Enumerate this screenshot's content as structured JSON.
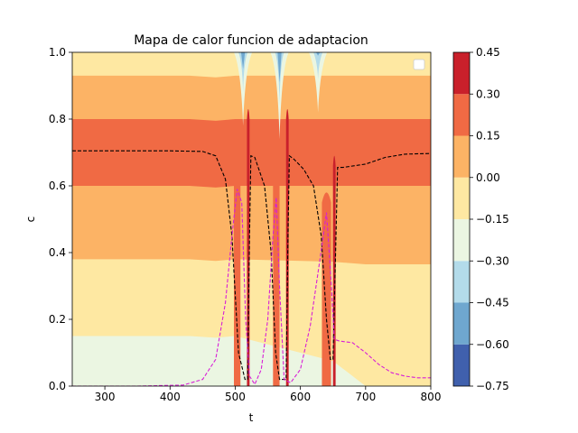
{
  "chart_data": {
    "type": "heatmap",
    "title": "Mapa de calor funcion de adaptacion",
    "xlabel": "t",
    "ylabel": "c",
    "xlim": [
      250,
      800
    ],
    "ylim": [
      0.0,
      1.0
    ],
    "x_ticks": [
      "300",
      "400",
      "500",
      "600",
      "700",
      "800"
    ],
    "x_tick_values": [
      300,
      400,
      500,
      600,
      700,
      800
    ],
    "y_ticks": [
      "0.0",
      "0.2",
      "0.4",
      "0.6",
      "0.8",
      "1.0"
    ],
    "y_tick_values": [
      0.0,
      0.2,
      0.4,
      0.6,
      0.8,
      1.0
    ],
    "colorbar": {
      "levels": [
        -0.75,
        -0.6,
        -0.45,
        -0.3,
        -0.15,
        0.0,
        0.15,
        0.3,
        0.45
      ],
      "tick_labels": [
        "−0.75",
        "−0.60",
        "−0.45",
        "−0.30",
        "−0.15",
        "0.00",
        "0.15",
        "0.30",
        "0.45"
      ],
      "colors": [
        "#4060ad",
        "#6fa7cf",
        "#b3dbea",
        "#ebf6e2",
        "#fee8a2",
        "#fcb365",
        "#f06a44",
        "#c9202b"
      ]
    },
    "band_boundaries_at_t300": [
      0.15,
      0.38,
      0.6,
      0.8,
      0.93
    ],
    "black_dashed_series": {
      "style": "dashed",
      "color": "#000000",
      "points": [
        [
          250,
          0.705
        ],
        [
          300,
          0.705
        ],
        [
          350,
          0.705
        ],
        [
          400,
          0.705
        ],
        [
          450,
          0.703
        ],
        [
          470,
          0.69
        ],
        [
          485,
          0.62
        ],
        [
          495,
          0.45
        ],
        [
          505,
          0.1
        ],
        [
          515,
          0.02
        ],
        [
          519,
          0.02
        ],
        [
          522,
          0.45
        ],
        [
          524,
          0.69
        ],
        [
          530,
          0.685
        ],
        [
          545,
          0.6
        ],
        [
          555,
          0.4
        ],
        [
          562,
          0.1
        ],
        [
          568,
          0.02
        ],
        [
          578,
          0.02
        ],
        [
          581,
          0.45
        ],
        [
          583,
          0.69
        ],
        [
          590,
          0.68
        ],
        [
          605,
          0.65
        ],
        [
          620,
          0.6
        ],
        [
          632,
          0.45
        ],
        [
          640,
          0.2
        ],
        [
          646,
          0.08
        ],
        [
          650,
          0.08
        ],
        [
          654,
          0.4
        ],
        [
          657,
          0.655
        ],
        [
          665,
          0.655
        ],
        [
          700,
          0.665
        ],
        [
          730,
          0.685
        ],
        [
          760,
          0.695
        ],
        [
          800,
          0.697
        ]
      ]
    },
    "magenta_dashed_series": {
      "style": "dashed",
      "color": "#d71fd7",
      "points": [
        [
          250,
          0.0
        ],
        [
          350,
          0.0
        ],
        [
          420,
          0.003
        ],
        [
          450,
          0.02
        ],
        [
          470,
          0.08
        ],
        [
          485,
          0.25
        ],
        [
          495,
          0.45
        ],
        [
          503,
          0.59
        ],
        [
          510,
          0.55
        ],
        [
          516,
          0.2
        ],
        [
          522,
          0.03
        ],
        [
          530,
          0.005
        ],
        [
          540,
          0.05
        ],
        [
          550,
          0.2
        ],
        [
          558,
          0.45
        ],
        [
          563,
          0.565
        ],
        [
          568,
          0.3
        ],
        [
          575,
          0.02
        ],
        [
          585,
          0.01
        ],
        [
          600,
          0.05
        ],
        [
          615,
          0.18
        ],
        [
          630,
          0.38
        ],
        [
          640,
          0.52
        ],
        [
          646,
          0.35
        ],
        [
          652,
          0.14
        ],
        [
          660,
          0.135
        ],
        [
          680,
          0.13
        ],
        [
          700,
          0.1
        ],
        [
          720,
          0.065
        ],
        [
          740,
          0.04
        ],
        [
          760,
          0.03
        ],
        [
          780,
          0.025
        ],
        [
          800,
          0.025
        ]
      ]
    },
    "legend": {
      "placement": "top-right",
      "entries": []
    }
  }
}
